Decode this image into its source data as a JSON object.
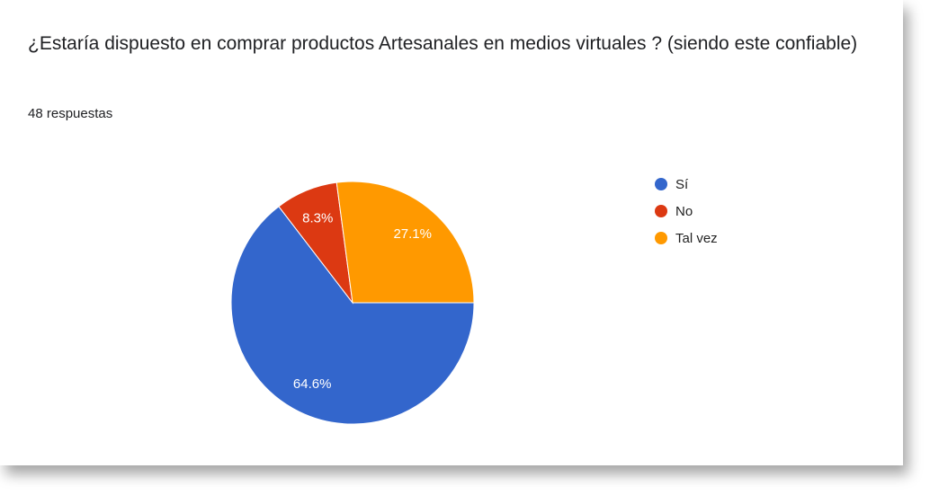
{
  "chart_data": {
    "type": "pie",
    "title": "¿Estaría dispuesto en comprar productos Artesanales en medios virtuales ? (siendo este confiable)",
    "subtitle": "48 respuestas",
    "categories": [
      "Sí",
      "No",
      "Tal vez"
    ],
    "values": [
      64.6,
      8.3,
      27.1
    ],
    "value_labels": [
      "64.6%",
      "8.3%",
      "27.1%"
    ],
    "colors": [
      "#3366cc",
      "#dc3912",
      "#ff9900"
    ],
    "legend": "right"
  }
}
